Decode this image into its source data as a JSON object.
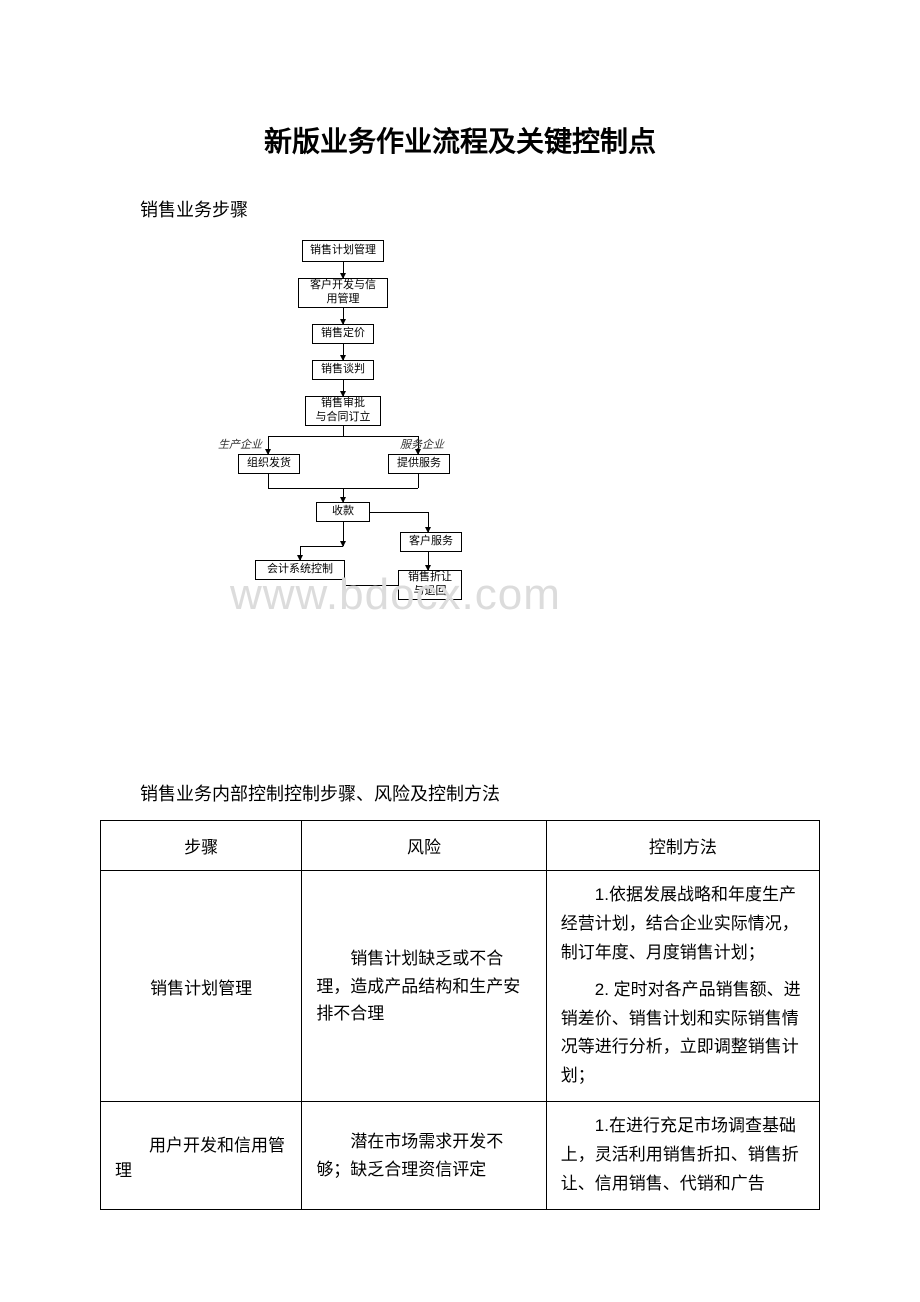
{
  "title": "新版业务作业流程及关键控制点",
  "subtitle_flow": "销售业务步骤",
  "subtitle_table": "销售业务内部控制控制步骤、风险及控制方法",
  "watermark": "www.bdocx.com",
  "flowchart": {
    "type": "flowchart",
    "background_color": "#ffffff",
    "border_color": "#000000",
    "node_fontsize": 11,
    "nodes": {
      "n1": "销售计划管理",
      "n2": "客户开发与信\n用管理",
      "n3": "销售定价",
      "n4": "销售谈判",
      "n5": "销售审批\n与合同订立",
      "n6": "组织发货",
      "n7": "提供服务",
      "n8": "收款",
      "n9": "客户服务",
      "n10": "会计系统控制",
      "n11": "销售折让\n与退回"
    },
    "branch_labels": {
      "left": "生产企业",
      "right": "服务企业"
    }
  },
  "table": {
    "type": "table",
    "columns": [
      "步骤",
      "风险",
      "控制方法"
    ],
    "col_widths_pct": [
      28,
      34,
      38
    ],
    "rows": [
      {
        "step": "销售计划管理",
        "risk": "销售计划缺乏或不合理，造成产品结构和生产安排不合理",
        "controls": [
          "1.依据发展战略和年度生产经营计划，结合企业实际情况，制订年度、月度销售计划；",
          "2. 定时对各产品销售额、进销差价、销售计划和实际销售情况等进行分析，立即调整销售计划；"
        ]
      },
      {
        "step": "用户开发和信用管理",
        "risk": "潜在市场需求开发不够；缺乏合理资信评定",
        "controls": [
          "1.在进行充足市场调查基础上，灵活利用销售折扣、销售折让、信用销售、代销和广告"
        ]
      }
    ],
    "border_color": "#000000",
    "text_color": "#000000",
    "header_fontsize": 17,
    "cell_fontsize": 17
  },
  "colors": {
    "background": "#ffffff",
    "text": "#000000",
    "watermark": "#dcdcdc",
    "node_border": "#000000"
  }
}
